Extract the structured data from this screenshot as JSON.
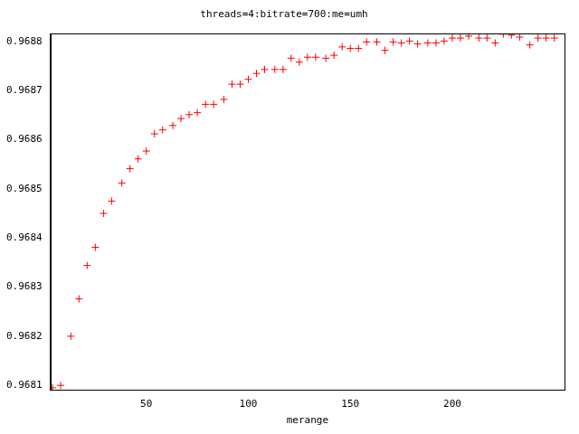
{
  "chart_data": {
    "type": "scatter",
    "title": "threads=4:bitrate=700:me=umh",
    "x_label": "merange",
    "x": [
      4,
      8,
      13,
      17,
      21,
      25,
      29,
      33,
      38,
      42,
      46,
      50,
      54,
      58,
      63,
      67,
      71,
      75,
      79,
      83,
      88,
      92,
      96,
      100,
      104,
      108,
      113,
      117,
      121,
      125,
      129,
      133,
      138,
      142,
      146,
      150,
      154,
      158,
      163,
      167,
      171,
      175,
      179,
      183,
      188,
      192,
      196,
      200,
      204,
      208,
      213,
      217,
      221,
      225,
      229,
      233,
      238,
      242,
      246,
      250
    ],
    "values": [
      0.968095,
      0.9681,
      0.9682,
      0.968276,
      0.968344,
      0.968381,
      0.96845,
      0.968475,
      0.968512,
      0.968541,
      0.968561,
      0.968577,
      0.968612,
      0.96862,
      0.968629,
      0.968643,
      0.968651,
      0.968655,
      0.968672,
      0.968672,
      0.968682,
      0.968713,
      0.968713,
      0.968723,
      0.968735,
      0.968743,
      0.968743,
      0.968743,
      0.968766,
      0.968758,
      0.968768,
      0.968768,
      0.968766,
      0.968772,
      0.968789,
      0.968786,
      0.968786,
      0.968799,
      0.968799,
      0.968782,
      0.968799,
      0.968797,
      0.968801,
      0.968795,
      0.968797,
      0.968797,
      0.968801,
      0.968807,
      0.968807,
      0.968811,
      0.968807,
      0.968807,
      0.968797,
      0.968815,
      0.968813,
      0.968809,
      0.968793,
      0.968807,
      0.968807,
      0.968807
    ],
    "color": "#ff0000",
    "marker": "cross",
    "xlim": [
      3,
      255
    ],
    "xticks": [
      50,
      100,
      150,
      200
    ],
    "ylim": [
      0.96809,
      0.968816
    ],
    "yticks": [
      0.9681,
      0.9682,
      0.9683,
      0.9684,
      0.9685,
      0.9686,
      0.9687,
      0.9688
    ],
    "grid": false
  }
}
